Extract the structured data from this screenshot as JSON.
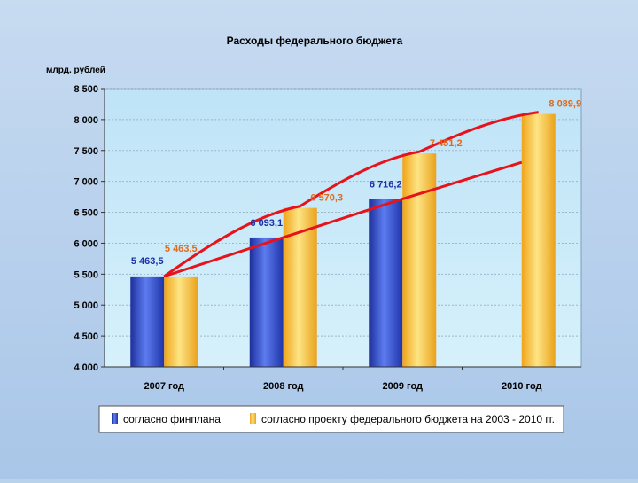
{
  "chart_data": {
    "type": "bar",
    "title": "Расходы федерального бюджета",
    "ylabel": "млрд. рублей",
    "xlabel": "",
    "ylim": [
      4000,
      8500
    ],
    "yticks": [
      4000,
      4500,
      5000,
      5500,
      6000,
      6500,
      7000,
      7500,
      8000,
      8500
    ],
    "ytick_labels": [
      "4 000",
      "4 500",
      "5 000",
      "5 500",
      "6 000",
      "6 500",
      "7 000",
      "7 500",
      "8 000",
      "8 500"
    ],
    "categories": [
      "2007 год",
      "2008 год",
      "2009 год",
      "2010 год"
    ],
    "series": [
      {
        "name": "согласно финплана",
        "color": "#3553d6",
        "values": [
          5463.5,
          6093.1,
          6716.2,
          null
        ],
        "labels": [
          "5 463,5",
          "6 093,1",
          "6 716,2",
          ""
        ]
      },
      {
        "name": "согласно проекту федерального бюджета на 2003 - 2010 гг.",
        "color": "#f2c02c",
        "values": [
          5463.5,
          6570.3,
          7451.2,
          8089.9
        ],
        "labels": [
          "5 463,5",
          "6 570,3",
          "7 451,2",
          "8 089,9"
        ]
      }
    ],
    "trend_color": "#e8121b",
    "grid": true,
    "legend_position": "bottom"
  }
}
